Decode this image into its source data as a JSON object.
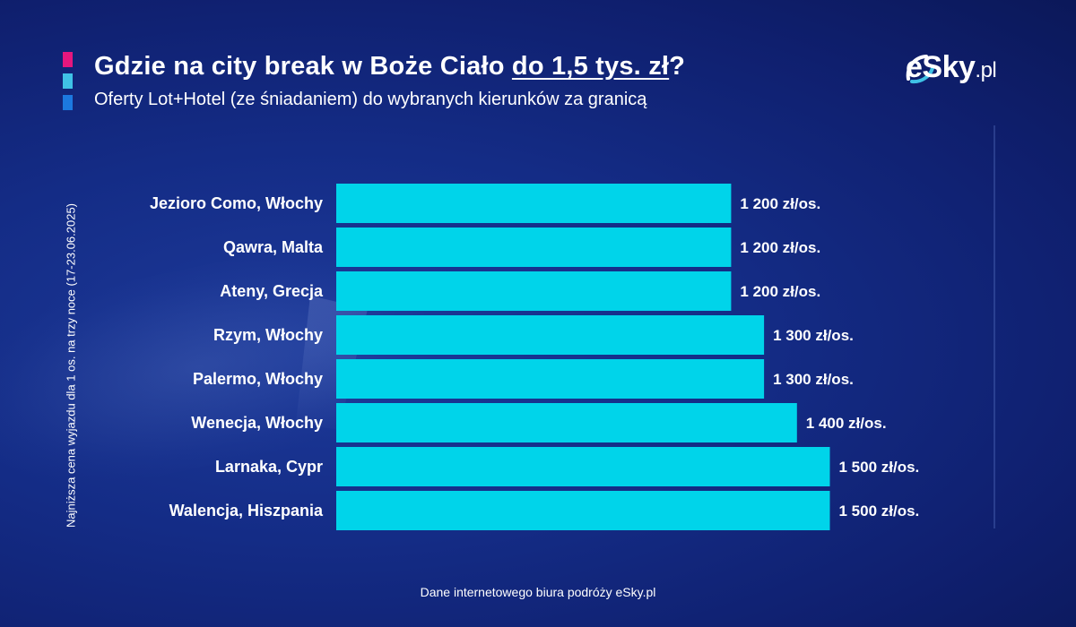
{
  "header": {
    "title_prefix": "Gdzie na city break w Boże Ciało ",
    "title_highlight": "do 1,5 tys. zł",
    "title_suffix": "?",
    "subtitle": "Oferty Lot+Hotel (ze śniadaniem) do wybranych kierunków za granicą"
  },
  "logo": {
    "brand": "eSky",
    "domain": ".pl"
  },
  "colors": {
    "background": "#142c86",
    "bar": "#00d4ea",
    "accent_pink": "#e4177e",
    "accent_cyan": "#3fc2e6",
    "accent_blue": "#1c79e0"
  },
  "footer": {
    "source": "Dane internetowego biura podróży eSky.pl"
  },
  "chart_data": {
    "type": "bar",
    "orientation": "horizontal",
    "title": "Gdzie na city break w Boże Ciało do 1,5 tys. zł?",
    "subtitle": "Oferty Lot+Hotel (ze śniadaniem) do wybranych kierunków za granicą",
    "ylabel": "Najniższa cena wyjazdu dla 1 os. na trzy noce (17-23.06.2025)",
    "categories": [
      "Jezioro Como, Włochy",
      "Qawra, Malta",
      "Ateny, Grecja",
      "Rzym, Włochy",
      "Palermo, Włochy",
      "Wenecja, Włochy",
      "Larnaka, Cypr",
      "Walencja, Hiszpania"
    ],
    "values": [
      1200,
      1200,
      1200,
      1300,
      1300,
      1400,
      1500,
      1500
    ],
    "value_labels": [
      "1 200 zł/os.",
      "1 200 zł/os.",
      "1 200 zł/os.",
      "1 300 zł/os.",
      "1 300 zł/os.",
      "1 400 zł/os.",
      "1 500 zł/os.",
      "1 500 zł/os."
    ],
    "grid": false,
    "legend": false
  }
}
